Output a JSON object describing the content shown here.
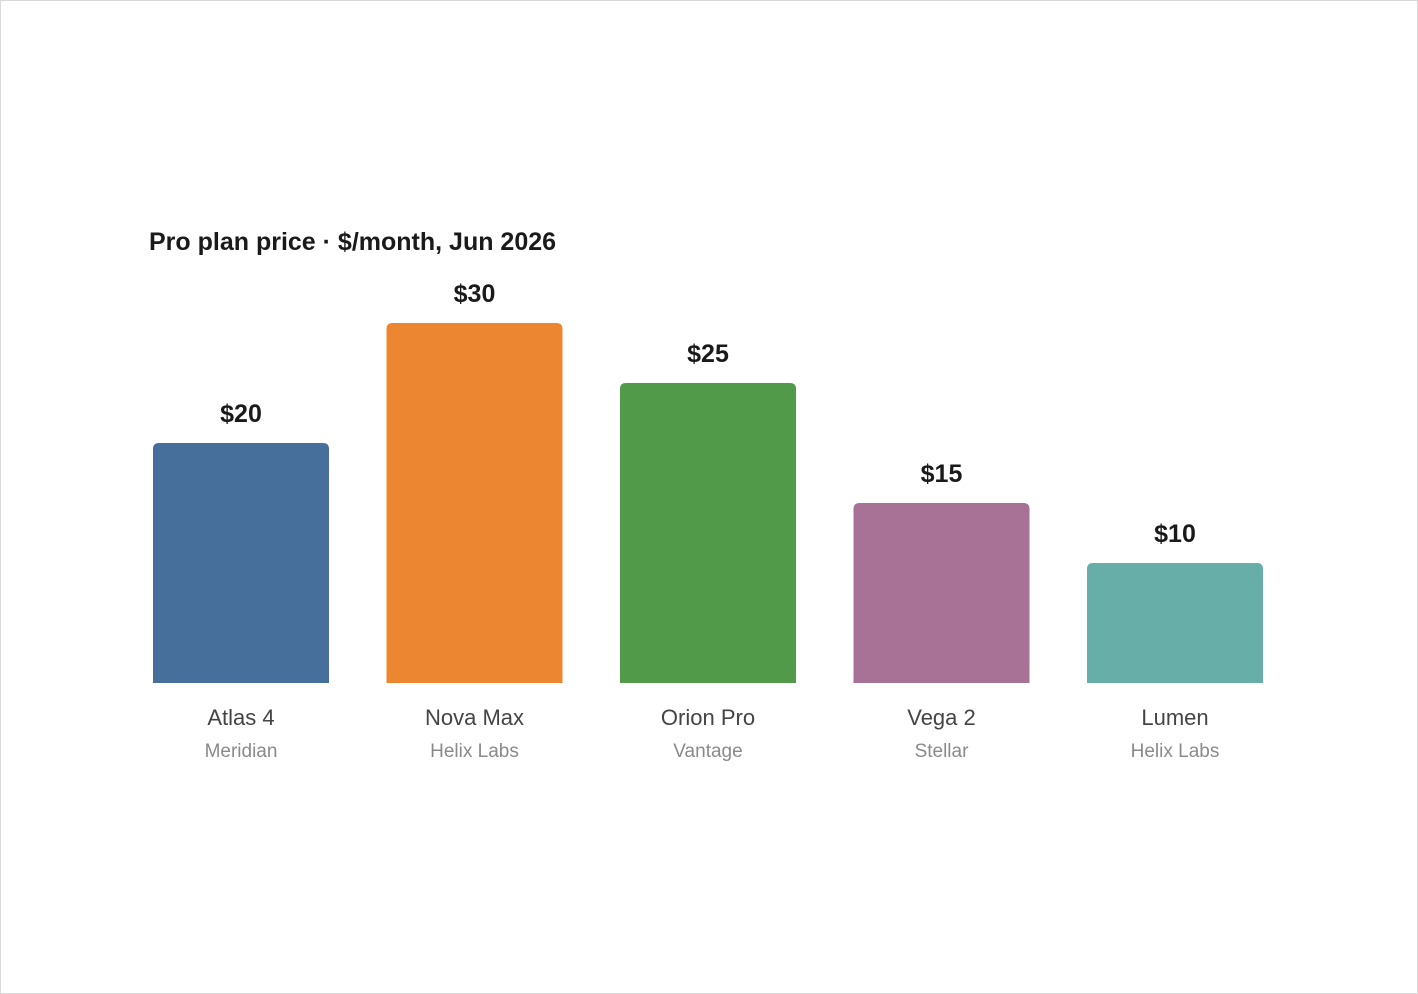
{
  "chart_data": {
    "type": "bar",
    "title": "Pro plan price · $/month, Jun 2026",
    "categories": [
      "Atlas 4",
      "Nova Max",
      "Orion Pro",
      "Vega 2",
      "Lumen"
    ],
    "subcategories": [
      "Meridian",
      "Helix Labs",
      "Vantage",
      "Stellar",
      "Helix Labs"
    ],
    "values": [
      20,
      30,
      25,
      15,
      10
    ],
    "value_labels": [
      "$20",
      "$30",
      "$25",
      "$15",
      "$10"
    ],
    "colors": [
      "#466f9b",
      "#ed8630",
      "#509a4a",
      "#a87296",
      "#68aea8"
    ],
    "xlabel": "",
    "ylabel": "",
    "ylim": [
      0,
      30
    ],
    "grid": false,
    "legend": "none"
  }
}
